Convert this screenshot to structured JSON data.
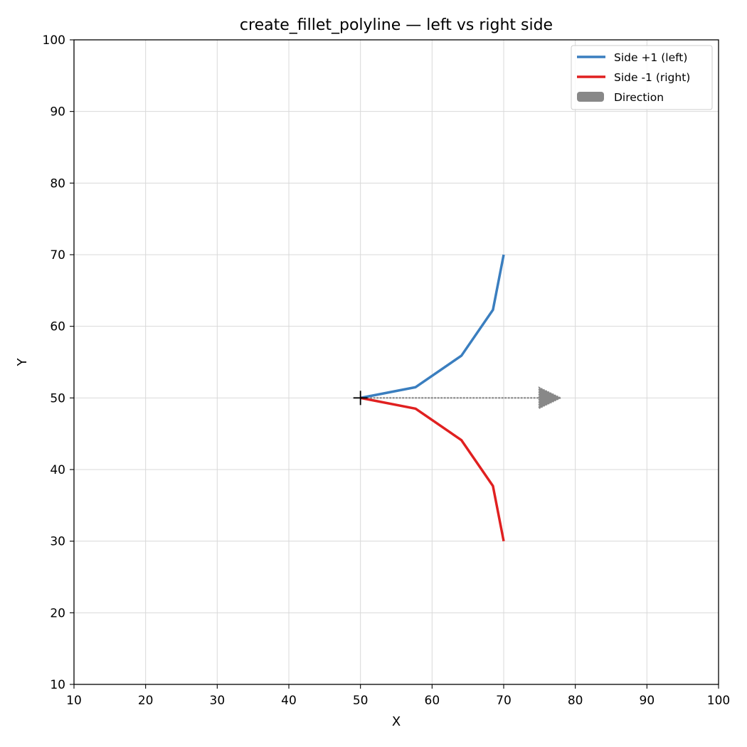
{
  "chart_data": {
    "type": "line",
    "title": "create_fillet_polyline — left vs right side",
    "xlabel": "X",
    "ylabel": "Y",
    "xlim": [
      10,
      100
    ],
    "ylim": [
      10,
      100
    ],
    "xticks": [
      10,
      20,
      30,
      40,
      50,
      60,
      70,
      80,
      90,
      100
    ],
    "yticks": [
      10,
      20,
      30,
      40,
      50,
      60,
      70,
      80,
      90,
      100
    ],
    "grid": true,
    "legend_position": "top-right",
    "series": [
      {
        "name": "Side +1 (left)",
        "color": "#3a7ebf",
        "x": [
          50,
          57.7,
          64.1,
          68.5,
          70
        ],
        "y": [
          50,
          51.5,
          55.9,
          62.3,
          70
        ]
      },
      {
        "name": "Side -1 (right)",
        "color": "#e02020",
        "x": [
          50,
          57.7,
          64.1,
          68.5,
          70
        ],
        "y": [
          50,
          48.5,
          44.1,
          37.7,
          30
        ]
      }
    ],
    "direction_arrow": {
      "name": "Direction",
      "color": "#888888",
      "start": [
        50,
        50
      ],
      "end": [
        78,
        50
      ]
    },
    "start_marker": {
      "x": 50,
      "y": 50,
      "shape": "plus",
      "color": "#000000"
    }
  }
}
